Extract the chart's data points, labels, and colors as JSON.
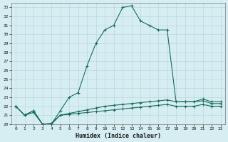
{
  "xlabel": "Humidex (Indice chaleur)",
  "background_color": "#d6eef2",
  "grid_color": "#b8d8df",
  "line_color": "#1a6b5a",
  "xlim": [
    -0.5,
    23.5
  ],
  "ylim": [
    20,
    33.5
  ],
  "yticks": [
    20,
    21,
    22,
    23,
    24,
    25,
    26,
    27,
    28,
    29,
    30,
    31,
    32,
    33
  ],
  "xticks": [
    0,
    1,
    2,
    3,
    4,
    5,
    6,
    7,
    8,
    9,
    10,
    11,
    12,
    13,
    14,
    15,
    16,
    17,
    18,
    19,
    20,
    21,
    22,
    23
  ],
  "series": [
    {
      "x": [
        0,
        1,
        2,
        3,
        4,
        5,
        6,
        7,
        8,
        9,
        10,
        11,
        12,
        13,
        14,
        15,
        16,
        17,
        18,
        19,
        20,
        21,
        22,
        23
      ],
      "y": [
        22.0,
        21.0,
        21.5,
        20.0,
        20.0,
        21.5,
        23.0,
        23.5,
        26.5,
        29.0,
        30.5,
        31.0,
        33.0,
        33.2,
        31.5,
        31.0,
        30.5,
        30.5,
        22.5,
        22.5,
        22.5,
        22.8,
        22.5,
        22.5
      ]
    },
    {
      "x": [
        0,
        1,
        2,
        3,
        4,
        5,
        6,
        7,
        8,
        9,
        10,
        11,
        12,
        13,
        14,
        15,
        16,
        17,
        18,
        19,
        20,
        21,
        22,
        23
      ],
      "y": [
        22.0,
        21.0,
        21.5,
        20.0,
        20.1,
        21.0,
        21.2,
        21.4,
        21.6,
        21.8,
        22.0,
        22.1,
        22.2,
        22.3,
        22.4,
        22.5,
        22.6,
        22.7,
        22.5,
        22.5,
        22.5,
        22.6,
        22.3,
        22.3
      ]
    },
    {
      "x": [
        0,
        1,
        2,
        3,
        4,
        5,
        6,
        7,
        8,
        9,
        10,
        11,
        12,
        13,
        14,
        15,
        16,
        17,
        18,
        19,
        20,
        21,
        22,
        23
      ],
      "y": [
        22.0,
        21.0,
        21.3,
        20.0,
        20.0,
        21.0,
        21.1,
        21.2,
        21.3,
        21.4,
        21.5,
        21.6,
        21.7,
        21.8,
        21.9,
        22.0,
        22.1,
        22.2,
        22.0,
        22.0,
        22.0,
        22.2,
        22.0,
        22.0
      ]
    }
  ]
}
